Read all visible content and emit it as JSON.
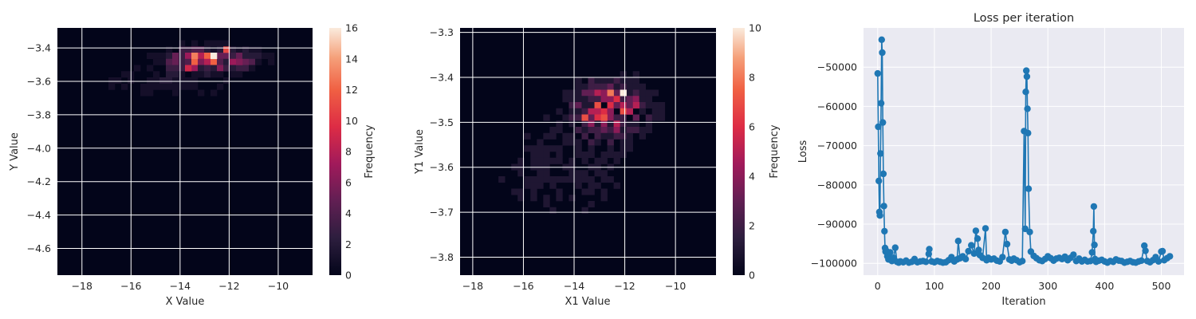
{
  "chart_data": [
    {
      "type": "heatmap",
      "xlabel": "X Value",
      "ylabel": "Y Value",
      "xlim": [
        -19.0,
        -8.6
      ],
      "ylim": [
        -4.76,
        -3.28
      ],
      "xticks": [
        -18,
        -16,
        -14,
        -12,
        -10
      ],
      "xtick_labels": [
        "−18",
        "−16",
        "−14",
        "−12",
        "−10"
      ],
      "yticks": [
        -3.4,
        -3.6,
        -3.8,
        -4.0,
        -4.2,
        -4.4,
        -4.6
      ],
      "ytick_labels": [
        "−3.4",
        "−3.6",
        "−3.8",
        "−4.0",
        "−4.2",
        "−4.4",
        "−4.6"
      ],
      "colorbar": {
        "label": "Frequency",
        "range": [
          0,
          16
        ],
        "ticks": [
          0,
          2,
          4,
          6,
          8,
          10,
          12,
          14,
          16
        ],
        "tick_labels": [
          "0",
          "2",
          "4",
          "6",
          "8",
          "10",
          "12",
          "14",
          "16"
        ],
        "colormap": "rocket"
      },
      "bins": [
        40,
        40
      ],
      "hot_spots": [
        {
          "x": -12.6,
          "y": -3.46,
          "value": 16
        },
        {
          "x": -13.3,
          "y": -3.46,
          "value": 13
        },
        {
          "x": -12.0,
          "y": -3.42,
          "value": 11
        },
        {
          "x": -13.6,
          "y": -3.52,
          "value": 9
        },
        {
          "x": -11.6,
          "y": -3.48,
          "value": 6
        }
      ]
    },
    {
      "type": "heatmap",
      "xlabel": "X1 Value",
      "ylabel": "Y1 Value",
      "xlim": [
        -18.5,
        -8.4
      ],
      "ylim": [
        -3.84,
        -3.29
      ],
      "xticks": [
        -18,
        -16,
        -14,
        -12,
        -10
      ],
      "xtick_labels": [
        "−18",
        "−16",
        "−14",
        "−12",
        "−10"
      ],
      "yticks": [
        -3.3,
        -3.4,
        -3.5,
        -3.6,
        -3.7,
        -3.8
      ],
      "ytick_labels": [
        "−3.3",
        "−3.4",
        "−3.5",
        "−3.6",
        "−3.7",
        "−3.8"
      ],
      "colorbar": {
        "label": "Frequency",
        "range": [
          0,
          10
        ],
        "ticks": [
          0,
          2,
          4,
          6,
          8,
          10
        ],
        "tick_labels": [
          "0",
          "2",
          "4",
          "6",
          "8",
          "10"
        ],
        "colormap": "rocket"
      },
      "bins": [
        40,
        40
      ],
      "hot_spots": [
        {
          "x": -12.1,
          "y": -3.44,
          "value": 10
        },
        {
          "x": -12.6,
          "y": -3.43,
          "value": 8
        },
        {
          "x": -13.5,
          "y": -3.49,
          "value": 7
        },
        {
          "x": -12.9,
          "y": -3.49,
          "value": 7
        },
        {
          "x": -11.6,
          "y": -3.46,
          "value": 5
        }
      ]
    },
    {
      "type": "line",
      "title": "Loss per iteration",
      "xlabel": "Iteration",
      "ylabel": "Loss",
      "xlim": [
        -25,
        540
      ],
      "ylim": [
        -103000,
        -40000
      ],
      "xticks": [
        0,
        100,
        200,
        300,
        400,
        500
      ],
      "xtick_labels": [
        "0",
        "100",
        "200",
        "300",
        "400",
        "500"
      ],
      "yticks": [
        -50000,
        -60000,
        -70000,
        -80000,
        -90000,
        -100000
      ],
      "ytick_labels": [
        "−50000",
        "−60000",
        "−70000",
        "−80000",
        "−90000",
        "−100000"
      ],
      "grid": true,
      "marker": "o",
      "color": "#1f77b4",
      "x": [
        0,
        1,
        2,
        3,
        4,
        5,
        6,
        7,
        8,
        9,
        10,
        11,
        12,
        13,
        14,
        15,
        17,
        19,
        22,
        25,
        28,
        31,
        34,
        37,
        40,
        45,
        50,
        55,
        60,
        65,
        70,
        75,
        80,
        85,
        90,
        91,
        95,
        100,
        105,
        110,
        115,
        120,
        125,
        130,
        135,
        140,
        142,
        145,
        150,
        155,
        160,
        165,
        170,
        173,
        176,
        178,
        180,
        185,
        190,
        192,
        195,
        200,
        205,
        210,
        215,
        220,
        225,
        228,
        232,
        236,
        240,
        245,
        250,
        255,
        258,
        260,
        261,
        262,
        263,
        264,
        265,
        266,
        268,
        270,
        275,
        280,
        285,
        290,
        295,
        300,
        305,
        310,
        315,
        320,
        325,
        330,
        335,
        340,
        345,
        350,
        355,
        360,
        365,
        370,
        375,
        378,
        380,
        381,
        382,
        383,
        385,
        390,
        395,
        400,
        405,
        410,
        415,
        420,
        425,
        430,
        435,
        440,
        445,
        450,
        455,
        460,
        465,
        470,
        472,
        475,
        480,
        485,
        490,
        495,
        500,
        502,
        505,
        510,
        515
      ],
      "y": [
        -51600,
        -65200,
        -79000,
        -86900,
        -87800,
        -72000,
        -59200,
        -43000,
        -46300,
        -64100,
        -77200,
        -85400,
        -91800,
        -96100,
        -97000,
        -96800,
        -98200,
        -99000,
        -97200,
        -99400,
        -98600,
        -96000,
        -99600,
        -99800,
        -99500,
        -99700,
        -99300,
        -99800,
        -99600,
        -98900,
        -99700,
        -99500,
        -99400,
        -99600,
        -97600,
        -96400,
        -99500,
        -99700,
        -99400,
        -99600,
        -99800,
        -99700,
        -99200,
        -98400,
        -99500,
        -99000,
        -94300,
        -98700,
        -98200,
        -98900,
        -96900,
        -95400,
        -97500,
        -91700,
        -93700,
        -96600,
        -97900,
        -98600,
        -91100,
        -99200,
        -98600,
        -99000,
        -98800,
        -99300,
        -99500,
        -98400,
        -92000,
        -95100,
        -99000,
        -99300,
        -98800,
        -99200,
        -99700,
        -99400,
        -66300,
        -91200,
        -56300,
        -50900,
        -52400,
        -60600,
        -66800,
        -81000,
        -92000,
        -97000,
        -98100,
        -98700,
        -99200,
        -99400,
        -98900,
        -98200,
        -98700,
        -99300,
        -98800,
        -98600,
        -98900,
        -98300,
        -99200,
        -98600,
        -97800,
        -99400,
        -98800,
        -99500,
        -99100,
        -99500,
        -99400,
        -97200,
        -91800,
        -85500,
        -95300,
        -98900,
        -99600,
        -99300,
        -99100,
        -99500,
        -99800,
        -99400,
        -99600,
        -99000,
        -99300,
        -99400,
        -99800,
        -99600,
        -99400,
        -99700,
        -99800,
        -99500,
        -99300,
        -95500,
        -96800,
        -99400,
        -99700,
        -99200,
        -98400,
        -99500,
        -97000,
        -96900,
        -99200,
        -98700,
        -98200
      ]
    }
  ]
}
